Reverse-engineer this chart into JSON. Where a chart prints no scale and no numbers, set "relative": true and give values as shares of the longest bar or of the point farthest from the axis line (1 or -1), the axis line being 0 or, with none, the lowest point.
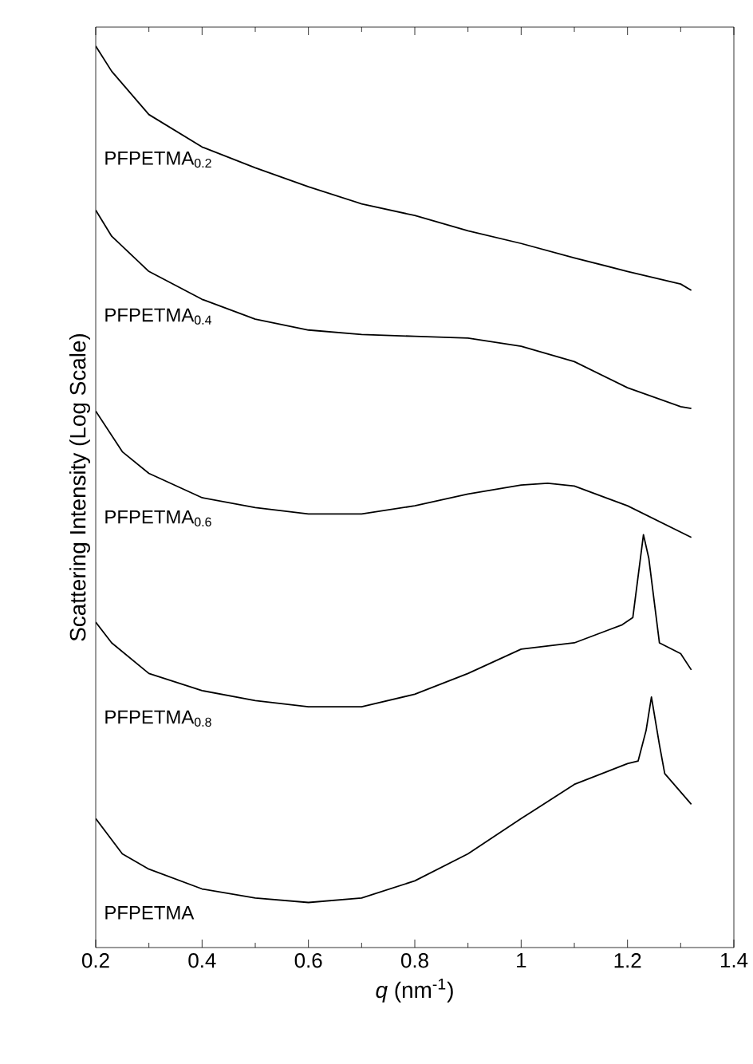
{
  "chart_data": {
    "type": "line",
    "relative": true,
    "xlabel": "*q* (nm$^{-1}$)",
    "ylabel": "Scattering Intensity (Log Scale)",
    "xlim": [
      0.2,
      1.4
    ],
    "xticks": [
      0.2,
      0.4,
      0.6,
      0.8,
      1,
      1.2,
      1.4
    ],
    "grid": false,
    "series": [
      {
        "name": "PFPETMA$_{0.2}$",
        "color": "#000000",
        "x": [
          0.2,
          0.23,
          0.3,
          0.4,
          0.5,
          0.6,
          0.7,
          0.8,
          0.9,
          1.0,
          1.1,
          1.2,
          1.3,
          1.32
        ],
        "values": [
          1.0,
          0.972,
          0.924,
          0.888,
          0.865,
          0.844,
          0.825,
          0.812,
          0.795,
          0.781,
          0.765,
          0.75,
          0.736,
          0.729
        ]
      },
      {
        "name": "PFPETMA$_{0.4}$",
        "color": "#000000",
        "x": [
          0.2,
          0.23,
          0.3,
          0.4,
          0.5,
          0.6,
          0.7,
          0.8,
          0.9,
          1.0,
          1.1,
          1.2,
          1.3,
          1.32
        ],
        "values": [
          0.818,
          0.789,
          0.75,
          0.719,
          0.697,
          0.685,
          0.68,
          0.678,
          0.676,
          0.667,
          0.65,
          0.621,
          0.6,
          0.598
        ]
      },
      {
        "name": "PFPETMA$_{0.6}$",
        "color": "#000000",
        "x": [
          0.2,
          0.25,
          0.3,
          0.4,
          0.5,
          0.6,
          0.7,
          0.8,
          0.9,
          1.0,
          1.05,
          1.1,
          1.2,
          1.32
        ],
        "values": [
          0.595,
          0.55,
          0.526,
          0.499,
          0.488,
          0.481,
          0.481,
          0.49,
          0.503,
          0.513,
          0.515,
          0.512,
          0.49,
          0.455
        ]
      },
      {
        "name": "PFPETMA$_{0.8}$",
        "color": "#000000",
        "x": [
          0.2,
          0.23,
          0.3,
          0.4,
          0.5,
          0.6,
          0.7,
          0.8,
          0.9,
          1.0,
          1.1,
          1.19,
          1.21,
          1.23,
          1.24,
          1.26,
          1.3,
          1.32
        ],
        "values": [
          0.361,
          0.338,
          0.304,
          0.285,
          0.274,
          0.267,
          0.267,
          0.281,
          0.304,
          0.331,
          0.338,
          0.358,
          0.366,
          0.458,
          0.432,
          0.338,
          0.326,
          0.308
        ]
      },
      {
        "name": "PFPETMA",
        "color": "#000000",
        "x": [
          0.2,
          0.25,
          0.3,
          0.4,
          0.5,
          0.6,
          0.7,
          0.8,
          0.9,
          1.0,
          1.1,
          1.2,
          1.22,
          1.235,
          1.245,
          1.26,
          1.27,
          1.32
        ],
        "values": [
          0.143,
          0.104,
          0.087,
          0.065,
          0.055,
          0.05,
          0.055,
          0.074,
          0.104,
          0.143,
          0.181,
          0.204,
          0.207,
          0.241,
          0.278,
          0.225,
          0.193,
          0.159
        ]
      }
    ]
  }
}
